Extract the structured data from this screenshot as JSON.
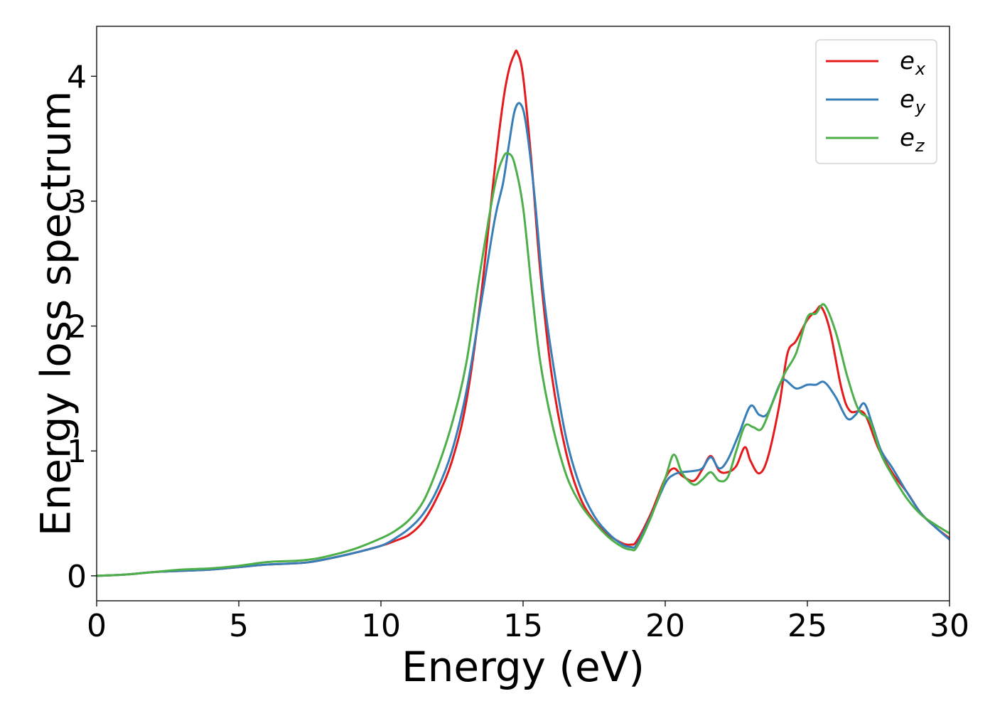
{
  "chart_data": {
    "type": "line",
    "title": "",
    "xlabel": "Energy (eV)",
    "ylabel": "Energy loss spectrum",
    "xlim": [
      0,
      30
    ],
    "ylim": [
      -0.2,
      4.4
    ],
    "xticks": [
      0,
      5,
      10,
      15,
      20,
      25,
      30
    ],
    "yticks": [
      0,
      1,
      2,
      3,
      4
    ],
    "grid": false,
    "legend_position": "top-right",
    "series": [
      {
        "name": "e_x",
        "base": "e",
        "subscript": "x",
        "color": "#e41a1c",
        "points": [
          [
            0,
            0
          ],
          [
            1,
            0.01
          ],
          [
            2,
            0.03
          ],
          [
            3,
            0.04
          ],
          [
            4,
            0.05
          ],
          [
            5,
            0.07
          ],
          [
            6,
            0.09
          ],
          [
            7,
            0.1
          ],
          [
            7.5,
            0.11
          ],
          [
            8,
            0.13
          ],
          [
            9,
            0.18
          ],
          [
            10,
            0.24
          ],
          [
            10.5,
            0.28
          ],
          [
            11,
            0.33
          ],
          [
            11.5,
            0.44
          ],
          [
            12,
            0.64
          ],
          [
            12.5,
            0.92
          ],
          [
            13,
            1.39
          ],
          [
            13.5,
            2.2
          ],
          [
            14,
            3.25
          ],
          [
            14.3,
            3.8
          ],
          [
            14.5,
            4.05
          ],
          [
            14.7,
            4.18
          ],
          [
            14.8,
            4.19
          ],
          [
            15,
            4.0
          ],
          [
            15.3,
            3.3
          ],
          [
            15.6,
            2.45
          ],
          [
            16,
            1.62
          ],
          [
            16.5,
            1.0
          ],
          [
            17,
            0.63
          ],
          [
            17.5,
            0.44
          ],
          [
            18,
            0.33
          ],
          [
            18.5,
            0.26
          ],
          [
            18.8,
            0.25
          ],
          [
            19,
            0.28
          ],
          [
            19.5,
            0.5
          ],
          [
            20,
            0.78
          ],
          [
            20.3,
            0.86
          ],
          [
            20.6,
            0.8
          ],
          [
            21,
            0.76
          ],
          [
            21.3,
            0.85
          ],
          [
            21.6,
            0.96
          ],
          [
            21.9,
            0.84
          ],
          [
            22.2,
            0.83
          ],
          [
            22.5,
            0.88
          ],
          [
            22.8,
            1.03
          ],
          [
            23,
            0.92
          ],
          [
            23.3,
            0.82
          ],
          [
            23.6,
            0.94
          ],
          [
            24,
            1.35
          ],
          [
            24.3,
            1.78
          ],
          [
            24.6,
            1.88
          ],
          [
            25,
            2.05
          ],
          [
            25.3,
            2.12
          ],
          [
            25.5,
            2.15
          ],
          [
            25.8,
            1.96
          ],
          [
            26.2,
            1.5
          ],
          [
            26.5,
            1.32
          ],
          [
            27,
            1.3
          ],
          [
            27.5,
            1.02
          ],
          [
            28,
            0.82
          ],
          [
            28.5,
            0.67
          ],
          [
            29,
            0.5
          ],
          [
            29.5,
            0.39
          ],
          [
            30,
            0.3
          ]
        ]
      },
      {
        "name": "e_y",
        "base": "e",
        "subscript": "y",
        "color": "#377eb8",
        "points": [
          [
            0,
            0
          ],
          [
            1,
            0.01
          ],
          [
            2,
            0.03
          ],
          [
            3,
            0.04
          ],
          [
            4,
            0.05
          ],
          [
            5,
            0.07
          ],
          [
            6,
            0.09
          ],
          [
            7,
            0.1
          ],
          [
            7.5,
            0.11
          ],
          [
            8,
            0.13
          ],
          [
            9,
            0.18
          ],
          [
            10,
            0.24
          ],
          [
            10.5,
            0.3
          ],
          [
            11,
            0.38
          ],
          [
            11.5,
            0.5
          ],
          [
            12,
            0.7
          ],
          [
            12.5,
            1.0
          ],
          [
            13,
            1.47
          ],
          [
            13.5,
            2.15
          ],
          [
            14,
            2.85
          ],
          [
            14.3,
            3.15
          ],
          [
            14.5,
            3.45
          ],
          [
            14.7,
            3.72
          ],
          [
            14.9,
            3.78
          ],
          [
            15.1,
            3.62
          ],
          [
            15.4,
            3.05
          ],
          [
            15.7,
            2.3
          ],
          [
            16,
            1.78
          ],
          [
            16.5,
            1.12
          ],
          [
            17,
            0.72
          ],
          [
            17.5,
            0.48
          ],
          [
            18,
            0.34
          ],
          [
            18.5,
            0.25
          ],
          [
            18.8,
            0.23
          ],
          [
            19,
            0.25
          ],
          [
            19.5,
            0.48
          ],
          [
            20,
            0.74
          ],
          [
            20.3,
            0.81
          ],
          [
            20.6,
            0.83
          ],
          [
            21,
            0.84
          ],
          [
            21.3,
            0.86
          ],
          [
            21.6,
            0.95
          ],
          [
            21.9,
            0.86
          ],
          [
            22.2,
            0.93
          ],
          [
            22.6,
            1.14
          ],
          [
            23,
            1.36
          ],
          [
            23.3,
            1.29
          ],
          [
            23.6,
            1.3
          ],
          [
            24,
            1.52
          ],
          [
            24.2,
            1.57
          ],
          [
            24.6,
            1.5
          ],
          [
            25,
            1.53
          ],
          [
            25.3,
            1.53
          ],
          [
            25.6,
            1.55
          ],
          [
            26,
            1.43
          ],
          [
            26.4,
            1.26
          ],
          [
            26.7,
            1.29
          ],
          [
            27,
            1.38
          ],
          [
            27.3,
            1.2
          ],
          [
            27.6,
            1.0
          ],
          [
            28,
            0.86
          ],
          [
            28.5,
            0.67
          ],
          [
            29,
            0.5
          ],
          [
            29.5,
            0.39
          ],
          [
            30,
            0.29
          ]
        ]
      },
      {
        "name": "e_z",
        "base": "e",
        "subscript": "z",
        "color": "#4daf4a",
        "points": [
          [
            0,
            0
          ],
          [
            1,
            0.01
          ],
          [
            2,
            0.03
          ],
          [
            3,
            0.05
          ],
          [
            4,
            0.06
          ],
          [
            5,
            0.08
          ],
          [
            6,
            0.11
          ],
          [
            7,
            0.12
          ],
          [
            7.5,
            0.13
          ],
          [
            8,
            0.15
          ],
          [
            9,
            0.21
          ],
          [
            10,
            0.3
          ],
          [
            10.5,
            0.36
          ],
          [
            11,
            0.45
          ],
          [
            11.5,
            0.6
          ],
          [
            12,
            0.87
          ],
          [
            12.5,
            1.22
          ],
          [
            13,
            1.7
          ],
          [
            13.5,
            2.45
          ],
          [
            14,
            3.12
          ],
          [
            14.3,
            3.35
          ],
          [
            14.5,
            3.38
          ],
          [
            14.7,
            3.3
          ],
          [
            15,
            2.95
          ],
          [
            15.3,
            2.3
          ],
          [
            15.6,
            1.72
          ],
          [
            16,
            1.24
          ],
          [
            16.5,
            0.82
          ],
          [
            17,
            0.58
          ],
          [
            17.5,
            0.43
          ],
          [
            18,
            0.31
          ],
          [
            18.5,
            0.23
          ],
          [
            18.8,
            0.21
          ],
          [
            19,
            0.23
          ],
          [
            19.5,
            0.47
          ],
          [
            20,
            0.78
          ],
          [
            20.3,
            0.97
          ],
          [
            20.6,
            0.82
          ],
          [
            21,
            0.73
          ],
          [
            21.3,
            0.77
          ],
          [
            21.6,
            0.83
          ],
          [
            21.9,
            0.76
          ],
          [
            22.2,
            0.79
          ],
          [
            22.5,
            1.0
          ],
          [
            22.8,
            1.2
          ],
          [
            23.1,
            1.19
          ],
          [
            23.4,
            1.18
          ],
          [
            23.8,
            1.4
          ],
          [
            24.2,
            1.62
          ],
          [
            24.6,
            1.78
          ],
          [
            25,
            2.07
          ],
          [
            25.3,
            2.1
          ],
          [
            25.6,
            2.17
          ],
          [
            26,
            1.95
          ],
          [
            26.4,
            1.6
          ],
          [
            26.8,
            1.33
          ],
          [
            27.2,
            1.24
          ],
          [
            27.6,
            0.97
          ],
          [
            28,
            0.8
          ],
          [
            28.5,
            0.62
          ],
          [
            29,
            0.49
          ],
          [
            29.5,
            0.41
          ],
          [
            30,
            0.34
          ]
        ]
      }
    ]
  }
}
